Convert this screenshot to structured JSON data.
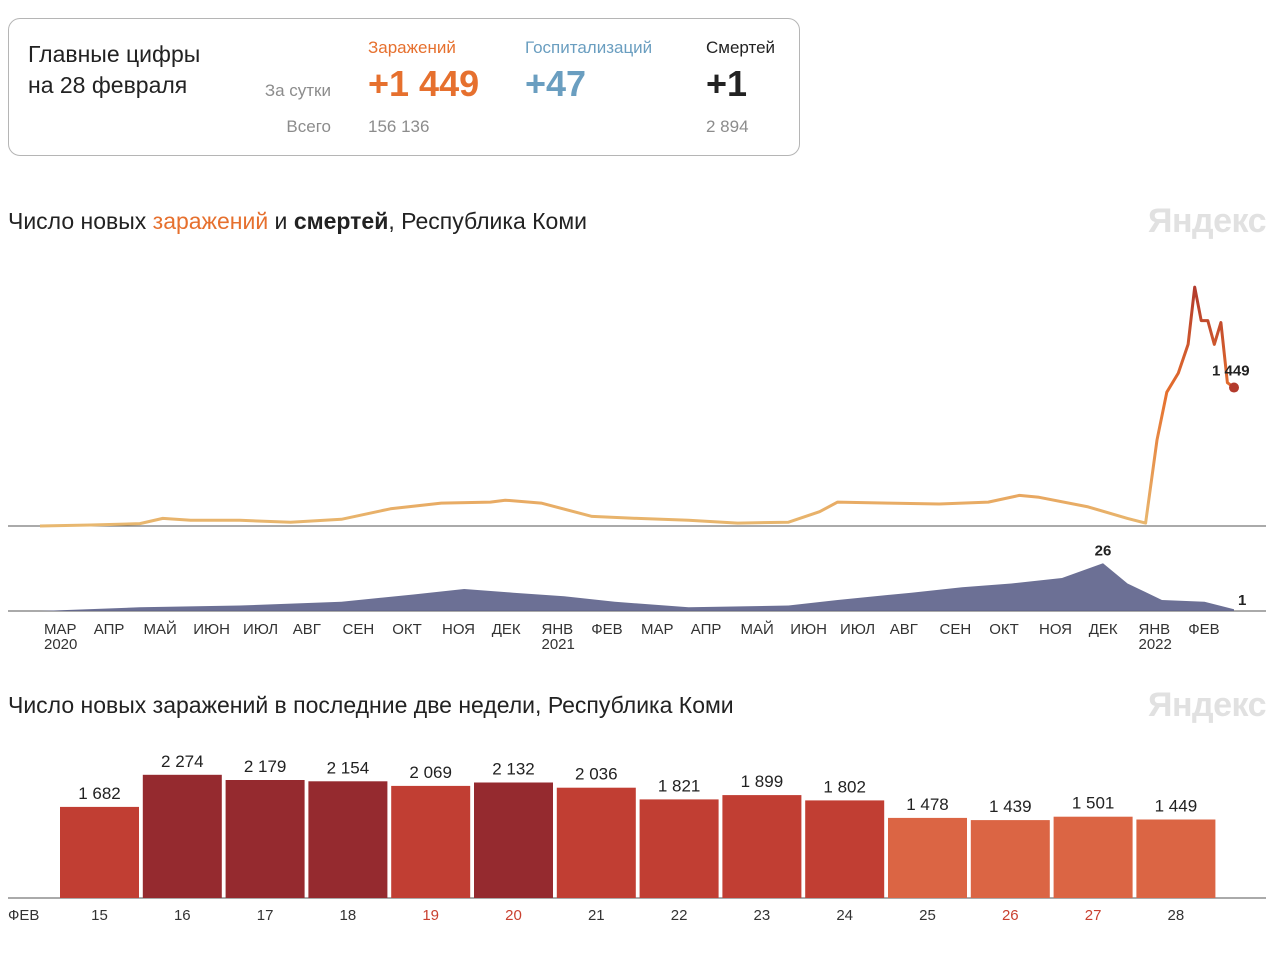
{
  "summary": {
    "title": "Главные цифры\nна 28 февраля",
    "row_day_label": "За сутки",
    "row_total_label": "Всего",
    "columns": [
      {
        "key": "infections",
        "header": "Заражений",
        "day": "+1 449",
        "total": "156 136",
        "color": "#e6702e"
      },
      {
        "key": "hospital",
        "header": "Госпитализаций",
        "day": "+47",
        "total": "",
        "color": "#6a9ec0"
      },
      {
        "key": "deaths",
        "header": "Смертей",
        "day": "+1",
        "total": "2 894",
        "color": "#222222"
      }
    ]
  },
  "chart1": {
    "title_parts": [
      "Число новых ",
      "заражений",
      " и ",
      "смертей",
      ", Республика Коми"
    ],
    "watermark": "Яндекс",
    "last_infection_label": "1 449",
    "peak_death_label": "26",
    "last_death_label": "1",
    "month_labels": [
      "МАР",
      "АПР",
      "МАЙ",
      "ИЮН",
      "ИЮЛ",
      "АВГ",
      "СЕН",
      "ОКТ",
      "НОЯ",
      "ДЕК",
      "ЯНВ",
      "ФЕВ",
      "МАР",
      "АПР",
      "МАЙ",
      "ИЮН",
      "ИЮЛ",
      "АВГ",
      "СЕН",
      "ОКТ",
      "НОЯ",
      "ДЕК",
      "ЯНВ",
      "ФЕВ"
    ],
    "year_labels": [
      "2020",
      "2021",
      "2022"
    ],
    "colors": {
      "infections_low": "#e8b870",
      "infections_mid": "#e6702e",
      "infections_high": "#b23a2c",
      "deaths": "#5c6189"
    }
  },
  "chart_data": [
    {
      "type": "line",
      "title": "Число новых заражений, Республика Коми",
      "x": [
        "2020-03-01",
        "2020-04-01",
        "2020-05-01",
        "2020-05-15",
        "2020-06-01",
        "2020-07-01",
        "2020-08-01",
        "2020-09-01",
        "2020-10-01",
        "2020-11-01",
        "2020-12-01",
        "2020-12-10",
        "2021-01-01",
        "2021-02-01",
        "2021-03-01",
        "2021-04-01",
        "2021-05-01",
        "2021-06-01",
        "2021-06-20",
        "2021-07-01",
        "2021-08-01",
        "2021-09-01",
        "2021-10-01",
        "2021-10-20",
        "2021-11-01",
        "2021-12-01",
        "2021-12-25",
        "2022-01-05",
        "2022-01-12",
        "2022-01-18",
        "2022-01-25",
        "2022-01-31",
        "2022-02-04",
        "2022-02-08",
        "2022-02-12",
        "2022-02-16",
        "2022-02-20",
        "2022-02-24",
        "2022-02-28"
      ],
      "values": [
        0,
        10,
        25,
        80,
        60,
        60,
        40,
        70,
        180,
        240,
        250,
        270,
        240,
        100,
        80,
        60,
        30,
        40,
        150,
        250,
        240,
        230,
        250,
        320,
        300,
        200,
        80,
        30,
        900,
        1400,
        1600,
        1900,
        2500,
        2150,
        2150,
        1900,
        2130,
        1500,
        1449
      ],
      "ylim": [
        0,
        2700
      ],
      "last_value": 1449
    },
    {
      "type": "area",
      "title": "Число новых смертей, Республика Коми",
      "x": [
        "2020-03-01",
        "2020-05-01",
        "2020-07-01",
        "2020-09-01",
        "2020-10-15",
        "2020-11-15",
        "2020-12-15",
        "2021-01-15",
        "2021-02-15",
        "2021-04-01",
        "2021-06-01",
        "2021-07-01",
        "2021-08-15",
        "2021-09-15",
        "2021-10-15",
        "2021-11-15",
        "2021-12-10",
        "2021-12-25",
        "2022-01-15",
        "2022-02-10",
        "2022-02-28"
      ],
      "values": [
        0,
        2,
        3,
        5,
        9,
        12,
        10,
        8,
        5,
        2,
        3,
        6,
        10,
        13,
        15,
        18,
        26,
        15,
        6,
        5,
        1
      ],
      "ylim": [
        0,
        30
      ],
      "peak_value": 26,
      "last_value": 1
    },
    {
      "type": "bar",
      "title": "Число новых заражений в последние две недели, Республика Коми",
      "month_label": "ФЕВ",
      "categories": [
        "15",
        "16",
        "17",
        "18",
        "19",
        "20",
        "21",
        "22",
        "23",
        "24",
        "25",
        "26",
        "27",
        "28"
      ],
      "values": [
        1682,
        2274,
        2179,
        2154,
        2069,
        2132,
        2036,
        1821,
        1899,
        1802,
        1478,
        1439,
        1501,
        1449
      ],
      "value_labels": [
        "1 682",
        "2 274",
        "2 179",
        "2 154",
        "2 069",
        "2 132",
        "2 036",
        "1 821",
        "1 899",
        "1 802",
        "1 478",
        "1 439",
        "1 501",
        "1 449"
      ],
      "weekend": [
        false,
        false,
        false,
        false,
        true,
        true,
        false,
        false,
        false,
        false,
        false,
        true,
        true,
        false
      ],
      "ylim": [
        0,
        2400
      ],
      "colors": {
        "low": "#db6544",
        "mid": "#c13e33",
        "high": "#952a2f",
        "weekend_text": "#c9402f",
        "weekday_text": "#333333"
      }
    }
  ],
  "chart2": {
    "title": "Число новых заражений в последние две недели, Республика Коми",
    "watermark": "Яндекс"
  }
}
